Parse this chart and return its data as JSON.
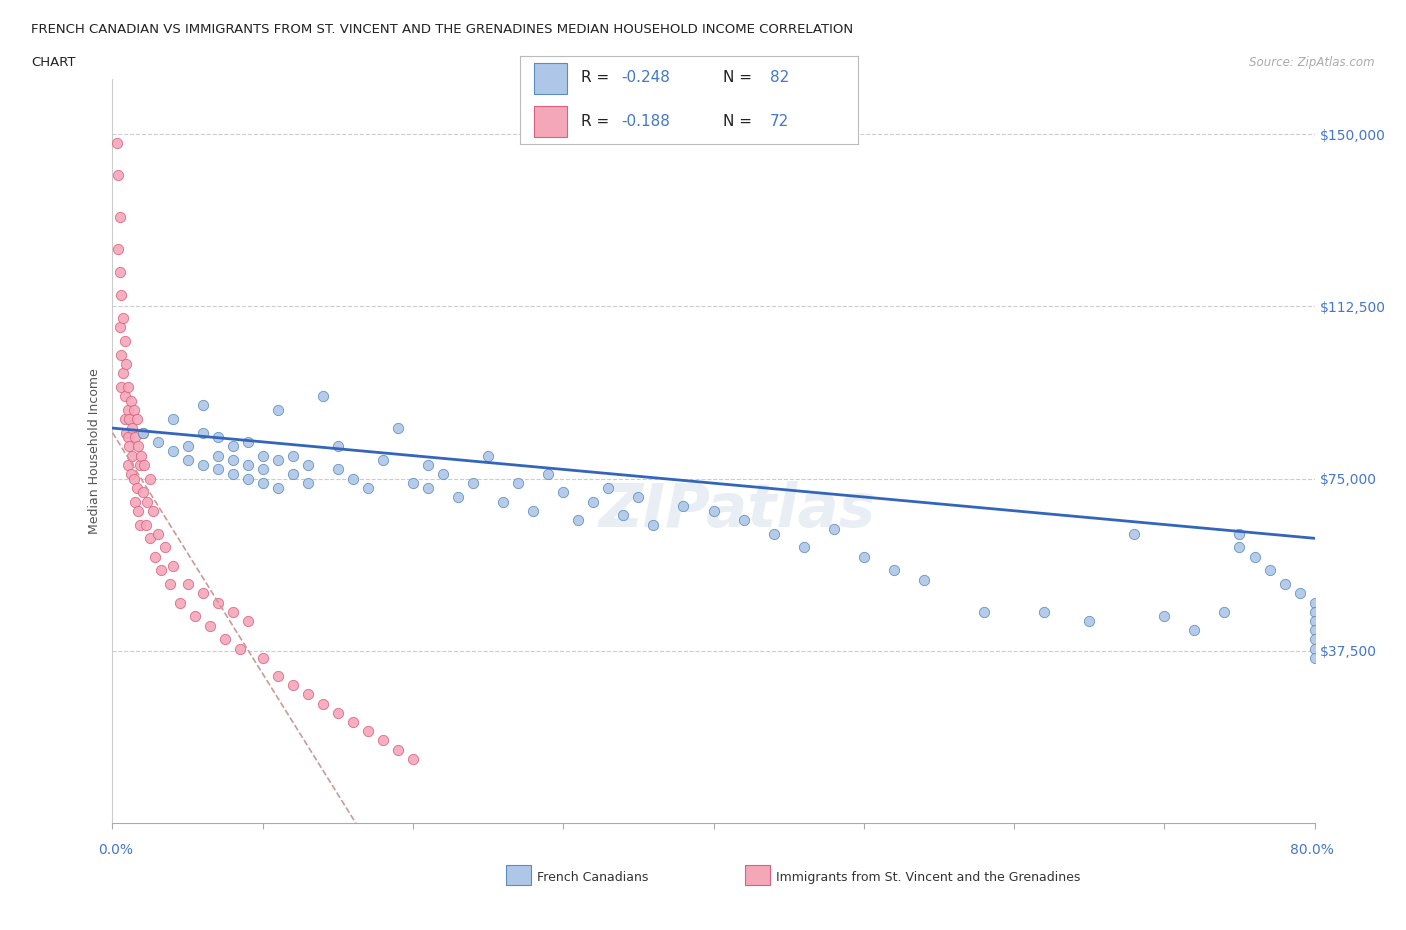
{
  "title_line1": "FRENCH CANADIAN VS IMMIGRANTS FROM ST. VINCENT AND THE GRENADINES MEDIAN HOUSEHOLD INCOME CORRELATION",
  "title_line2": "CHART",
  "source": "Source: ZipAtlas.com",
  "ylabel": "Median Household Income",
  "blue_r": -0.248,
  "blue_n": 82,
  "pink_r": -0.188,
  "pink_n": 72,
  "blue_color": "#aec6e8",
  "pink_color": "#f4a7b9",
  "blue_edge_color": "#5b8db8",
  "pink_edge_color": "#d96080",
  "blue_line_color": "#3366bb",
  "pink_line_color": "#cc6677",
  "axis_color": "#4477cc",
  "ytick_vals": [
    0,
    37500,
    75000,
    112500,
    150000
  ],
  "ytick_labels": [
    "",
    "$37,500",
    "$75,000",
    "$112,500",
    "$150,000"
  ],
  "xlim": [
    0,
    80
  ],
  "ylim": [
    0,
    162000
  ],
  "watermark": "ZIPatlas",
  "grid_color": "#cccccc",
  "blue_scatter_x": [
    2,
    3,
    4,
    4,
    5,
    5,
    6,
    6,
    6,
    7,
    7,
    7,
    8,
    8,
    8,
    9,
    9,
    9,
    10,
    10,
    10,
    11,
    11,
    11,
    12,
    12,
    13,
    13,
    14,
    15,
    15,
    16,
    17,
    18,
    19,
    20,
    21,
    21,
    22,
    23,
    24,
    25,
    26,
    27,
    28,
    29,
    30,
    31,
    32,
    33,
    34,
    35,
    36,
    38,
    40,
    42,
    44,
    46,
    48,
    50,
    52,
    54,
    58,
    62,
    65,
    68,
    70,
    72,
    74,
    75,
    75,
    76,
    77,
    78,
    79,
    80,
    80,
    80,
    80,
    80,
    80,
    80
  ],
  "blue_scatter_y": [
    85000,
    83000,
    81000,
    88000,
    79000,
    82000,
    85000,
    78000,
    91000,
    80000,
    77000,
    84000,
    82000,
    76000,
    79000,
    83000,
    75000,
    78000,
    80000,
    74000,
    77000,
    79000,
    73000,
    90000,
    76000,
    80000,
    78000,
    74000,
    93000,
    77000,
    82000,
    75000,
    73000,
    79000,
    86000,
    74000,
    78000,
    73000,
    76000,
    71000,
    74000,
    80000,
    70000,
    74000,
    68000,
    76000,
    72000,
    66000,
    70000,
    73000,
    67000,
    71000,
    65000,
    69000,
    68000,
    66000,
    63000,
    60000,
    64000,
    58000,
    55000,
    53000,
    46000,
    46000,
    44000,
    63000,
    45000,
    42000,
    46000,
    63000,
    60000,
    58000,
    55000,
    52000,
    50000,
    48000,
    46000,
    44000,
    42000,
    40000,
    38000,
    36000
  ],
  "pink_scatter_x": [
    0.3,
    0.4,
    0.4,
    0.5,
    0.5,
    0.5,
    0.6,
    0.6,
    0.6,
    0.7,
    0.7,
    0.8,
    0.8,
    0.8,
    0.9,
    0.9,
    1.0,
    1.0,
    1.0,
    1.0,
    1.1,
    1.1,
    1.2,
    1.2,
    1.3,
    1.3,
    1.4,
    1.4,
    1.5,
    1.5,
    1.6,
    1.6,
    1.7,
    1.7,
    1.8,
    1.8,
    1.9,
    2.0,
    2.0,
    2.1,
    2.2,
    2.3,
    2.5,
    2.5,
    2.7,
    2.8,
    3.0,
    3.2,
    3.5,
    3.8,
    4.0,
    4.5,
    5.0,
    5.5,
    6.0,
    6.5,
    7.0,
    7.5,
    8.0,
    8.5,
    9.0,
    10.0,
    11.0,
    12.0,
    13.0,
    14.0,
    15.0,
    16.0,
    17.0,
    18.0,
    19.0,
    20.0
  ],
  "pink_scatter_y": [
    148000,
    141000,
    125000,
    132000,
    120000,
    108000,
    115000,
    102000,
    95000,
    110000,
    98000,
    105000,
    93000,
    88000,
    100000,
    85000,
    95000,
    90000,
    84000,
    78000,
    88000,
    82000,
    92000,
    76000,
    86000,
    80000,
    90000,
    75000,
    84000,
    70000,
    88000,
    73000,
    82000,
    68000,
    78000,
    65000,
    80000,
    85000,
    72000,
    78000,
    65000,
    70000,
    75000,
    62000,
    68000,
    58000,
    63000,
    55000,
    60000,
    52000,
    56000,
    48000,
    52000,
    45000,
    50000,
    43000,
    48000,
    40000,
    46000,
    38000,
    44000,
    36000,
    32000,
    30000,
    28000,
    26000,
    24000,
    22000,
    20000,
    18000,
    16000,
    14000
  ]
}
